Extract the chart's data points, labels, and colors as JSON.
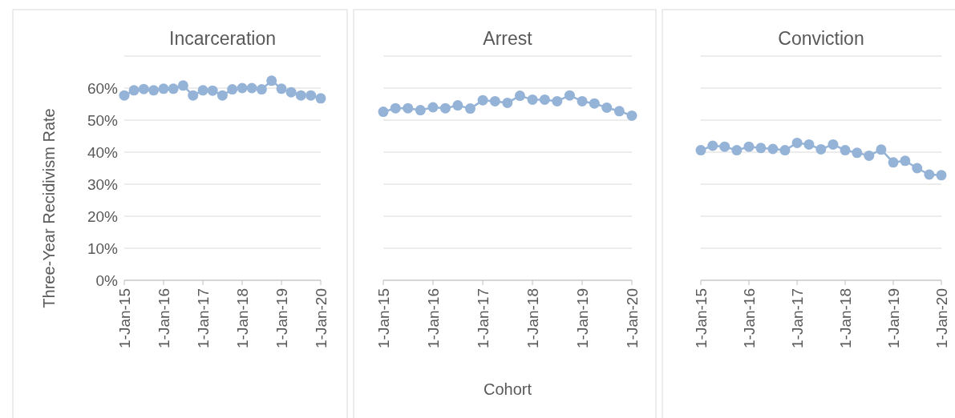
{
  "chart_data": [
    {
      "type": "line",
      "title": "Incarceration",
      "ylabel": "Three-Year Recidivism Rate",
      "x": [
        "2015-01-01",
        "2015-04-01",
        "2015-07-01",
        "2015-10-01",
        "2016-01-01",
        "2016-04-01",
        "2016-07-01",
        "2016-10-01",
        "2017-01-01",
        "2017-04-01",
        "2017-07-01",
        "2017-10-01",
        "2018-01-01",
        "2018-04-01",
        "2018-07-01",
        "2018-10-01",
        "2019-01-01",
        "2019-04-01",
        "2019-07-01",
        "2019-10-01",
        "2020-01-01"
      ],
      "series": [
        {
          "color": "#95b3d7",
          "values": [
            57.7,
            59.3,
            59.7,
            59.3,
            59.8,
            59.8,
            60.8,
            57.7,
            59.3,
            59.2,
            57.7,
            59.6,
            60,
            60,
            59.6,
            62.3,
            59.8,
            58.7,
            57.7,
            57.7,
            56.8
          ]
        }
      ],
      "xlim": [
        "2015-01-01",
        "2020-01-01"
      ],
      "xticks": [
        {
          "value": "2015-01-01",
          "label": "1-Jan-15"
        },
        {
          "value": "2016-01-01",
          "label": "1-Jan-16"
        },
        {
          "value": "2017-01-01",
          "label": "1-Jan-17"
        },
        {
          "value": "2018-01-01",
          "label": "1-Jan-18"
        },
        {
          "value": "2019-01-01",
          "label": "1-Jan-19"
        },
        {
          "value": "2020-01-01",
          "label": "1-Jan-20"
        }
      ],
      "ylim": [
        0,
        70
      ],
      "yticks": [
        {
          "value": 0,
          "label": "0%"
        },
        {
          "value": 10,
          "label": "10%"
        },
        {
          "value": 20,
          "label": "20%"
        },
        {
          "value": 30,
          "label": "30%"
        },
        {
          "value": 40,
          "label": "40%"
        },
        {
          "value": 50,
          "label": "50%"
        },
        {
          "value": 60,
          "label": "60%"
        },
        {
          "value": 70,
          "label": null
        }
      ],
      "grid": "y",
      "marker": "circle",
      "line_style": "solid"
    },
    {
      "type": "line",
      "title": "Arrest",
      "xlabel": "Cohort",
      "x": [
        "2015-01-01",
        "2015-04-01",
        "2015-07-01",
        "2015-10-01",
        "2016-01-01",
        "2016-04-01",
        "2016-07-01",
        "2016-10-01",
        "2017-01-01",
        "2017-04-01",
        "2017-07-01",
        "2017-10-01",
        "2018-01-01",
        "2018-04-01",
        "2018-07-01",
        "2018-10-01",
        "2019-01-01",
        "2019-04-01",
        "2019-07-01",
        "2019-10-01",
        "2020-01-01"
      ],
      "series": [
        {
          "color": "#95b3d7",
          "values": [
            52.6,
            53.7,
            53.7,
            53.1,
            54,
            53.7,
            54.6,
            53.6,
            56.2,
            55.9,
            55.4,
            57.6,
            56.4,
            56.4,
            55.9,
            57.7,
            55.9,
            55.2,
            53.9,
            52.8,
            51.4
          ]
        }
      ],
      "xlim": [
        "2015-01-01",
        "2020-01-01"
      ],
      "xticks": [
        {
          "value": "2015-01-01",
          "label": "1-Jan-15"
        },
        {
          "value": "2016-01-01",
          "label": "1-Jan-16"
        },
        {
          "value": "2017-01-01",
          "label": "1-Jan-17"
        },
        {
          "value": "2018-01-01",
          "label": "1-Jan-18"
        },
        {
          "value": "2019-01-01",
          "label": "1-Jan-19"
        },
        {
          "value": "2020-01-01",
          "label": "1-Jan-20"
        }
      ],
      "ylim": [
        0,
        70
      ],
      "yticks": [
        {
          "value": 0,
          "label": null
        },
        {
          "value": 10,
          "label": null
        },
        {
          "value": 20,
          "label": null
        },
        {
          "value": 30,
          "label": null
        },
        {
          "value": 40,
          "label": null
        },
        {
          "value": 50,
          "label": null
        },
        {
          "value": 60,
          "label": null
        },
        {
          "value": 70,
          "label": null
        }
      ],
      "tick_labels": "x",
      "grid": "y",
      "marker": "circle",
      "line_style": "solid"
    },
    {
      "type": "line",
      "title": "Conviction",
      "x": [
        "2015-01-01",
        "2015-04-01",
        "2015-07-01",
        "2015-10-01",
        "2016-01-01",
        "2016-04-01",
        "2016-07-01",
        "2016-10-01",
        "2017-01-01",
        "2017-04-01",
        "2017-07-01",
        "2017-10-01",
        "2018-01-01",
        "2018-04-01",
        "2018-07-01",
        "2018-10-01",
        "2019-01-01",
        "2019-04-01",
        "2019-07-01",
        "2019-10-01",
        "2020-01-01"
      ],
      "series": [
        {
          "color": "#95b3d7",
          "values": [
            40.6,
            42,
            41.7,
            40.6,
            41.7,
            41.3,
            41,
            40.6,
            42.9,
            42.4,
            40.9,
            42.4,
            40.6,
            39.8,
            38.9,
            40.8,
            36.8,
            37.3,
            35,
            33,
            32.8
          ]
        }
      ],
      "xlim": [
        "2015-01-01",
        "2020-01-01"
      ],
      "xticks": [
        {
          "value": "2015-01-01",
          "label": "1-Jan-15"
        },
        {
          "value": "2016-01-01",
          "label": "1-Jan-16"
        },
        {
          "value": "2017-01-01",
          "label": "1-Jan-17"
        },
        {
          "value": "2018-01-01",
          "label": "1-Jan-18"
        },
        {
          "value": "2019-01-01",
          "label": "1-Jan-19"
        },
        {
          "value": "2020-01-01",
          "label": "1-Jan-20"
        }
      ],
      "ylim": [
        0,
        70
      ],
      "yticks": [
        {
          "value": 0,
          "label": null
        },
        {
          "value": 10,
          "label": null
        },
        {
          "value": 20,
          "label": null
        },
        {
          "value": 30,
          "label": null
        },
        {
          "value": 40,
          "label": null
        },
        {
          "value": 50,
          "label": null
        },
        {
          "value": 60,
          "label": null
        },
        {
          "value": 70,
          "label": null
        }
      ],
      "tick_labels": "x",
      "grid": "y",
      "marker": "circle",
      "line_style": "solid"
    }
  ]
}
